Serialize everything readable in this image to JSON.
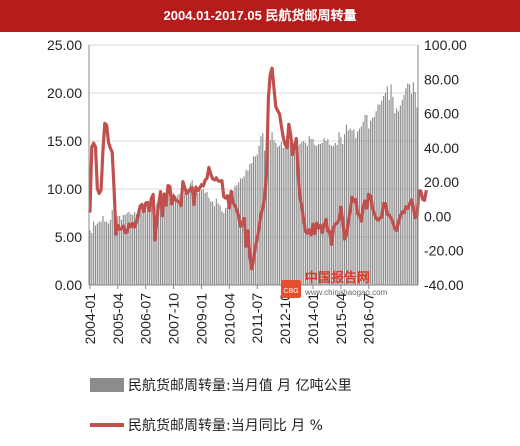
{
  "title": "2004.01-2017.05 民航货邮周转量",
  "watermark": {
    "name": "中国报告网",
    "url": "www.chinabaogao.com",
    "logo_text": "CBG"
  },
  "chart_data": {
    "type": "bar+line",
    "x_tick_labels": [
      "2004-01",
      "2005-04",
      "2006-07",
      "2007-10",
      "2009-01",
      "2010-04",
      "2011-07",
      "2012-10",
      "2014-01",
      "2015-04",
      "2016-07"
    ],
    "left_axis": {
      "ylim": [
        0,
        25
      ],
      "tick_values": [
        0,
        5,
        10,
        15,
        20,
        25
      ],
      "tick_labels": [
        "0.00",
        "5.00",
        "10.00",
        "15.00",
        "20.00",
        "25.00"
      ]
    },
    "right_axis": {
      "ylim": [
        -40,
        100
      ],
      "tick_values": [
        -40,
        -20,
        0,
        20,
        40,
        60,
        80,
        100
      ],
      "tick_labels": [
        "-40.00",
        "-20.00",
        "0.00",
        "20.00",
        "40.00",
        "60.00",
        "80.00",
        "100.00"
      ]
    },
    "grid": true,
    "legend_position": "bottom",
    "series": [
      {
        "name": "民航货邮周转量:当月值  月 亿吨公里",
        "type": "bar",
        "axis": "left",
        "color": "#8c8c8c",
        "values": [
          5.7,
          5.4,
          6.6,
          6.2,
          6.4,
          6.6,
          6.6,
          7.2,
          6.6,
          6.6,
          6.4,
          6.8,
          7.8,
          7.4,
          5.8,
          7.2,
          7.2,
          6.8,
          7.3,
          7.3,
          7.5,
          7.6,
          7.4,
          7.3,
          7.6,
          7.4,
          7.7,
          7.9,
          8.0,
          7.8,
          8.2,
          8.7,
          8.3,
          8.3,
          8.2,
          8.2,
          8.5,
          8.7,
          8.5,
          8.6,
          8.9,
          8.8,
          9.1,
          9.8,
          9.1,
          9.6,
          9.3,
          9.3,
          9.5,
          9.2,
          10.1,
          9.6,
          10.1,
          10.0,
          10.6,
          10.9,
          9.2,
          10.4,
          9.6,
          10.1,
          9.9,
          10.0,
          9.6,
          9.7,
          9.1,
          8.7,
          8.7,
          8.2,
          9.0,
          8.5,
          8.3,
          7.7,
          7.5,
          8.0,
          8.2,
          8.7,
          9.3,
          9.8,
          10.3,
          10.4,
          10.7,
          11.1,
          11.1,
          11.3,
          12.0,
          11.9,
          12.6,
          12.7,
          13.4,
          13.4,
          13.6,
          14.5,
          15.5,
          15.8,
          14.0,
          14.8,
          15.4,
          15.1,
          15.9,
          15.1,
          14.8,
          14.4,
          14.5,
          14.9,
          14.3,
          14.3,
          14.8,
          14.9,
          14.5,
          14.8,
          14.5,
          14.5,
          14.5,
          14.7,
          14.9,
          15.0,
          14.8,
          14.5,
          15.5,
          15.2,
          15.2,
          14.6,
          14.5,
          14.7,
          14.7,
          14.8,
          15.3,
          15.0,
          15.2,
          14.6,
          14.5,
          14.5,
          14.8,
          14.6,
          15.9,
          15.4,
          14.7,
          15.7,
          16.7,
          16.1,
          16.3,
          16.1,
          16.2,
          15.3,
          16.0,
          16.3,
          16.5,
          17.0,
          17.7,
          17.7,
          16.3,
          17.1,
          17.4,
          17.5,
          18.1,
          18.8,
          18.8,
          19.2,
          19.7,
          20.0,
          20.7,
          19.3,
          20.9,
          19.6,
          17.9,
          18.4,
          18.1,
          18.7,
          19.3,
          19.8,
          20.5,
          21.0,
          20.9,
          19.9,
          21.1,
          20.1,
          18.5
        ]
      },
      {
        "name": "民航货邮周转量:当月同比  月 %",
        "type": "line",
        "axis": "right",
        "color": "#c0504d",
        "values": [
          2.3,
          40.5,
          42.7,
          40.4,
          16.1,
          13.4,
          15.5,
          38.4,
          54.3,
          53.2,
          43.2,
          39.8,
          37.5,
          15.7,
          -10.4,
          -5.2,
          -7.5,
          -7.3,
          -5.6,
          -9.5,
          -9.1,
          -4.4,
          -6.0,
          -4.1,
          -6.2,
          -3.1,
          0.9,
          6.0,
          7.0,
          2.8,
          7.8,
          8.2,
          3.3,
          10.3,
          12.8,
          -13.7,
          -2.1,
          7.5,
          14.5,
          0.4,
          13.1,
          6.6,
          18.0,
          17.5,
          7.3,
          11.9,
          9.5,
          9.0,
          8.4,
          6.3,
          20.3,
          16.9,
          13.4,
          14.5,
          16.0,
          16.9,
          6.9,
          17.0,
          15.1,
          16.4,
          18.5,
          17.8,
          21.2,
          22.3,
          28.6,
          24.6,
          22.0,
          21.3,
          22.5,
          20.7,
          20.5,
          20.9,
          11.6,
          10.7,
          12.1,
          5.1,
          14.6,
          7.9,
          6.4,
          3.7,
          0.4,
          -5.8,
          -3.8,
          -1.2,
          -17.5,
          -8.4,
          -22.9,
          -30.6,
          -25.4,
          -17.5,
          -12.8,
          -6.6,
          1.3,
          4.6,
          11.1,
          25.1,
          68.7,
          82.9,
          86.5,
          75.0,
          63.9,
          61.7,
          59.8,
          52.7,
          46.1,
          42.0,
          40.0,
          53.8,
          47.9,
          36.1,
          41.0,
          45.4,
          25.0,
          11.3,
          5.9,
          -2.3,
          -8.8,
          -9.9,
          -7.7,
          -10.7,
          -4.5,
          -10.0,
          -3.9,
          -6.8,
          -5.1,
          -9.4,
          -5.1,
          -1.8,
          -8.6,
          -8.6,
          -16.3,
          -6.6,
          -4.4,
          -3.8,
          -2.2,
          5.4,
          -2.1,
          -13.2,
          -10.7,
          -3.1,
          3.3,
          11.2,
          8.9,
          9.9,
          1.7,
          0.6,
          -2.7,
          5.9,
          9.0,
          4.8,
          12.9,
          11.9,
          5.1,
          1.4,
          -1.2,
          -2.2,
          -0.9,
          -0.5,
          7.5,
          7.5,
          1.2,
          0.7,
          -1.0,
          -3.4,
          -7.0,
          -8.2,
          -3.3,
          0.4,
          2.6,
          2.1,
          5.6,
          4.6,
          7.2,
          9.7,
          4.9,
          -0.8,
          0.4,
          14.9,
          14.9,
          9.9,
          9.4,
          15.3
        ]
      }
    ]
  }
}
